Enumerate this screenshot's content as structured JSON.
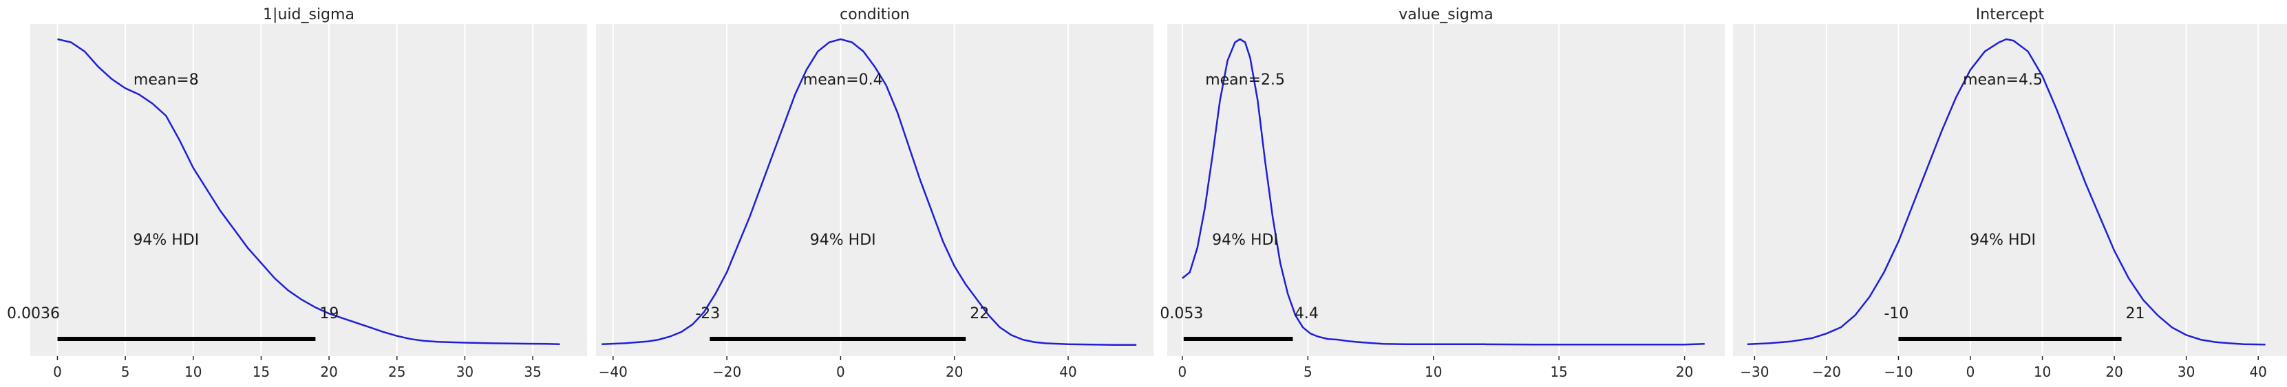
{
  "chart_data": [
    {
      "type": "line",
      "title": "1|uid_sigma",
      "xlim": [
        -2,
        39
      ],
      "xticks": [
        0,
        5,
        10,
        15,
        20,
        25,
        30,
        35
      ],
      "tick_labels": [
        "0",
        "5",
        "10",
        "15",
        "20",
        "25",
        "30",
        "35"
      ],
      "grid": true,
      "mean_label": "mean=8",
      "mean_at": 8,
      "hdi_label": "94% HDI",
      "hdi_low": 0.0036,
      "hdi_high": 19,
      "hdi_low_label": "0.0036",
      "hdi_high_label": "19",
      "series": [
        {
          "color": "#1f1fd6",
          "x": [
            0,
            1,
            2,
            3,
            4,
            5,
            6,
            7,
            8,
            9,
            10,
            11,
            12,
            13,
            14,
            15,
            16,
            17,
            18,
            19,
            20,
            21,
            22,
            23,
            24,
            25,
            26,
            27,
            28,
            30,
            32,
            34,
            36,
            37
          ],
          "y": [
            1.0,
            0.99,
            0.96,
            0.91,
            0.87,
            0.84,
            0.82,
            0.79,
            0.75,
            0.67,
            0.58,
            0.51,
            0.44,
            0.38,
            0.32,
            0.27,
            0.22,
            0.18,
            0.15,
            0.125,
            0.105,
            0.09,
            0.075,
            0.06,
            0.045,
            0.032,
            0.022,
            0.016,
            0.013,
            0.01,
            0.008,
            0.007,
            0.006,
            0.005
          ]
        }
      ]
    },
    {
      "type": "line",
      "title": "condition",
      "xlim": [
        -43,
        55
      ],
      "xticks": [
        -40,
        -20,
        0,
        20,
        40
      ],
      "tick_labels": [
        "−40",
        "−20",
        "0",
        "20",
        "40"
      ],
      "grid": true,
      "mean_label": "mean=0.4",
      "mean_at": 0.4,
      "hdi_label": "94% HDI",
      "hdi_low": -23,
      "hdi_high": 22,
      "hdi_low_label": "-23",
      "hdi_high_label": "22",
      "series": [
        {
          "color": "#1f1fd6",
          "x": [
            -42,
            -38,
            -34,
            -32,
            -30,
            -28,
            -26,
            -24,
            -22,
            -20,
            -18,
            -16,
            -14,
            -12,
            -10,
            -8,
            -6,
            -4,
            -2,
            0,
            2,
            4,
            6,
            8,
            10,
            12,
            14,
            16,
            18,
            20,
            22,
            24,
            26,
            28,
            30,
            32,
            34,
            36,
            40,
            44,
            48,
            52
          ],
          "y": [
            0.005,
            0.008,
            0.014,
            0.02,
            0.03,
            0.045,
            0.07,
            0.11,
            0.17,
            0.24,
            0.33,
            0.42,
            0.52,
            0.62,
            0.72,
            0.82,
            0.9,
            0.96,
            0.99,
            1.0,
            0.99,
            0.96,
            0.91,
            0.85,
            0.76,
            0.65,
            0.54,
            0.44,
            0.34,
            0.26,
            0.2,
            0.15,
            0.1,
            0.06,
            0.035,
            0.02,
            0.012,
            0.008,
            0.005,
            0.004,
            0.003,
            0.003
          ]
        }
      ]
    },
    {
      "type": "line",
      "title": "value_sigma",
      "xlim": [
        -0.6,
        21.6
      ],
      "xticks": [
        0,
        5,
        10,
        15,
        20
      ],
      "tick_labels": [
        "0",
        "5",
        "10",
        "15",
        "20"
      ],
      "grid": true,
      "mean_label": "mean=2.5",
      "mean_at": 2.5,
      "hdi_label": "94% HDI",
      "hdi_low": 0.053,
      "hdi_high": 4.4,
      "hdi_low_label": "0.053",
      "hdi_high_label": "4.4",
      "series": [
        {
          "color": "#1f1fd6",
          "x": [
            0,
            0.3,
            0.6,
            0.9,
            1.2,
            1.5,
            1.8,
            2.1,
            2.3,
            2.5,
            2.7,
            3.0,
            3.3,
            3.6,
            3.9,
            4.2,
            4.5,
            4.8,
            5.1,
            5.4,
            5.8,
            6.2,
            6.6,
            7.0,
            7.5,
            8.0,
            9,
            10,
            12,
            14,
            16,
            18,
            20,
            20.8
          ],
          "y": [
            0.22,
            0.24,
            0.32,
            0.45,
            0.62,
            0.8,
            0.93,
            0.99,
            1.0,
            0.99,
            0.94,
            0.8,
            0.6,
            0.42,
            0.27,
            0.17,
            0.1,
            0.06,
            0.04,
            0.03,
            0.022,
            0.02,
            0.015,
            0.012,
            0.009,
            0.006,
            0.005,
            0.005,
            0.005,
            0.004,
            0.004,
            0.004,
            0.004,
            0.006
          ]
        }
      ]
    },
    {
      "type": "line",
      "title": "Intercept",
      "xlim": [
        -33,
        44
      ],
      "xticks": [
        -30,
        -20,
        -10,
        0,
        10,
        20,
        30,
        40
      ],
      "tick_labels": [
        "−30",
        "−20",
        "−10",
        "0",
        "10",
        "20",
        "30",
        "40"
      ],
      "grid": true,
      "mean_label": "mean=4.5",
      "mean_at": 4.5,
      "hdi_label": "94% HDI",
      "hdi_low": -10,
      "hdi_high": 21,
      "hdi_low_label": "-10",
      "hdi_high_label": "21",
      "series": [
        {
          "color": "#1f1fd6",
          "x": [
            -31,
            -28,
            -25,
            -22,
            -20,
            -18,
            -16,
            -14,
            -12,
            -10,
            -8,
            -6,
            -4,
            -2,
            0,
            2,
            4,
            5,
            6,
            8,
            10,
            12,
            14,
            16,
            18,
            20,
            22,
            24,
            26,
            28,
            30,
            32,
            34,
            36,
            38,
            41
          ],
          "y": [
            0.005,
            0.008,
            0.014,
            0.025,
            0.04,
            0.06,
            0.1,
            0.16,
            0.24,
            0.34,
            0.46,
            0.58,
            0.7,
            0.81,
            0.9,
            0.96,
            0.99,
            1.0,
            0.995,
            0.96,
            0.88,
            0.77,
            0.65,
            0.53,
            0.42,
            0.31,
            0.22,
            0.15,
            0.1,
            0.06,
            0.035,
            0.02,
            0.012,
            0.008,
            0.005,
            0.004
          ]
        }
      ]
    }
  ]
}
